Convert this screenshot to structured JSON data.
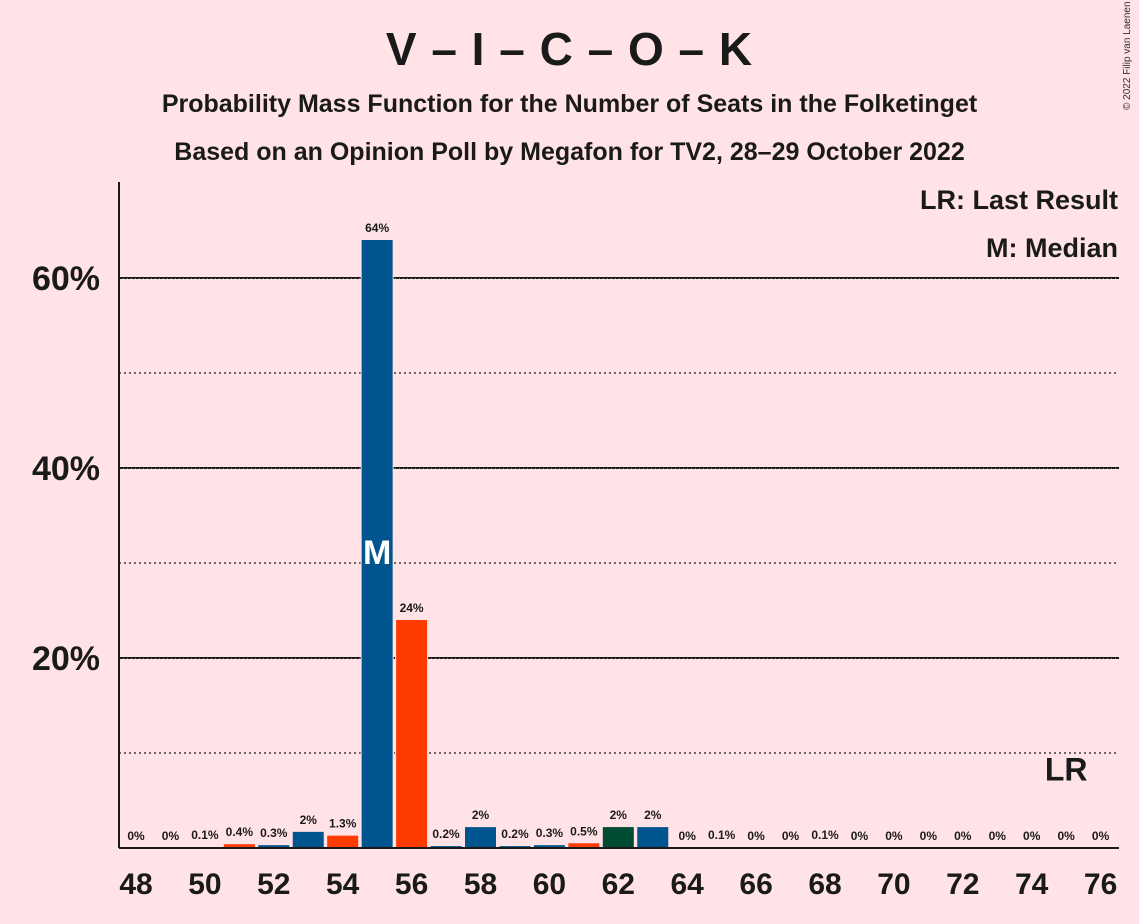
{
  "chart_data": {
    "type": "bar",
    "title": "V – I – C – O – K",
    "subtitle": "Probability Mass Function for the Number of Seats in the Folketinget",
    "subtitle2": "Based on an Opinion Poll by Megafon for TV2, 28–29 October 2022",
    "copyright": "© 2022 Filip van Laenen",
    "legend": [
      "LR: Last Result",
      "M: Median"
    ],
    "legend_position": "top-right",
    "ylim": [
      0,
      70
    ],
    "y_major_ticks": [
      20,
      40,
      60
    ],
    "y_minor_ticks": [
      10,
      30,
      50
    ],
    "y_tick_labels": [
      "20%",
      "40%",
      "60%"
    ],
    "x_tick_labels": [
      "48",
      "50",
      "52",
      "54",
      "56",
      "58",
      "60",
      "62",
      "64",
      "66",
      "68",
      "70",
      "72",
      "74",
      "76"
    ],
    "grid": true,
    "median": 55,
    "median_label": "M",
    "last_result": 75,
    "last_result_label": "LR",
    "colors": {
      "blue": "#00558F",
      "orange": "#FF3B00",
      "darkgreen": "#004B33",
      "background": "#FFE3E6"
    },
    "bars": [
      {
        "x": 48,
        "value": 0,
        "label": "0%",
        "color": "blue"
      },
      {
        "x": 49,
        "value": 0,
        "label": "0%",
        "color": "blue"
      },
      {
        "x": 50,
        "value": 0.1,
        "label": "0.1%",
        "color": "blue"
      },
      {
        "x": 51,
        "value": 0.4,
        "label": "0.4%",
        "color": "orange"
      },
      {
        "x": 52,
        "value": 0.3,
        "label": "0.3%",
        "color": "blue"
      },
      {
        "x": 53,
        "value": 1.7,
        "label": "2%",
        "color": "blue"
      },
      {
        "x": 54,
        "value": 1.3,
        "label": "1.3%",
        "color": "orange"
      },
      {
        "x": 55,
        "value": 64,
        "label": "64%",
        "color": "blue"
      },
      {
        "x": 56,
        "value": 24,
        "label": "24%",
        "color": "orange"
      },
      {
        "x": 57,
        "value": 0.2,
        "label": "0.2%",
        "color": "blue"
      },
      {
        "x": 58,
        "value": 2.2,
        "label": "2%",
        "color": "blue"
      },
      {
        "x": 59,
        "value": 0.2,
        "label": "0.2%",
        "color": "blue"
      },
      {
        "x": 60,
        "value": 0.3,
        "label": "0.3%",
        "color": "blue"
      },
      {
        "x": 61,
        "value": 0.5,
        "label": "0.5%",
        "color": "orange"
      },
      {
        "x": 62,
        "value": 2.2,
        "label": "2%",
        "color": "darkgreen"
      },
      {
        "x": 63,
        "value": 2.2,
        "label": "2%",
        "color": "blue"
      },
      {
        "x": 64,
        "value": 0,
        "label": "0%",
        "color": "blue"
      },
      {
        "x": 65,
        "value": 0.1,
        "label": "0.1%",
        "color": "blue"
      },
      {
        "x": 66,
        "value": 0,
        "label": "0%",
        "color": "blue"
      },
      {
        "x": 67,
        "value": 0,
        "label": "0%",
        "color": "blue"
      },
      {
        "x": 68,
        "value": 0.1,
        "label": "0.1%",
        "color": "blue"
      },
      {
        "x": 69,
        "value": 0,
        "label": "0%",
        "color": "blue"
      },
      {
        "x": 70,
        "value": 0,
        "label": "0%",
        "color": "blue"
      },
      {
        "x": 71,
        "value": 0,
        "label": "0%",
        "color": "blue"
      },
      {
        "x": 72,
        "value": 0,
        "label": "0%",
        "color": "blue"
      },
      {
        "x": 73,
        "value": 0,
        "label": "0%",
        "color": "blue"
      },
      {
        "x": 74,
        "value": 0,
        "label": "0%",
        "color": "blue"
      },
      {
        "x": 75,
        "value": 0,
        "label": "0%",
        "color": "blue"
      },
      {
        "x": 76,
        "value": 0,
        "label": "0%",
        "color": "blue"
      }
    ]
  }
}
